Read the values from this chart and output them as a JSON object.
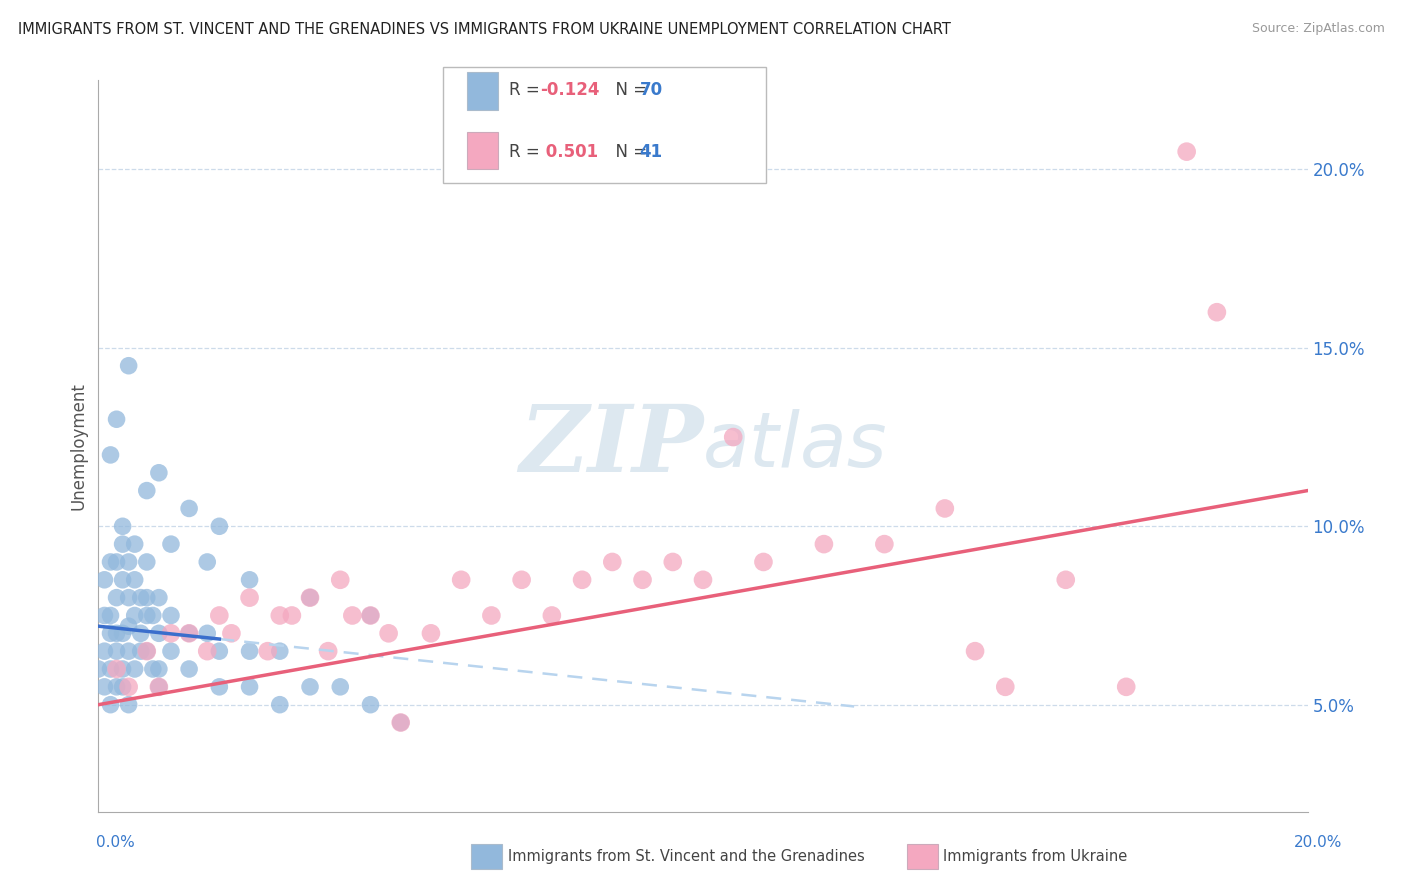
{
  "title": "IMMIGRANTS FROM ST. VINCENT AND THE GRENADINES VS IMMIGRANTS FROM UKRAINE UNEMPLOYMENT CORRELATION CHART",
  "source": "Source: ZipAtlas.com",
  "ylabel": "Unemployment",
  "ytick_values": [
    5.0,
    10.0,
    15.0,
    20.0
  ],
  "ytick_labels": [
    "5.0%",
    "10.0%",
    "15.0%",
    "20.0%"
  ],
  "xlim": [
    0.0,
    20.0
  ],
  "ylim": [
    2.0,
    22.5
  ],
  "legend1_label": "Immigrants from St. Vincent and the Grenadines",
  "legend2_label": "Immigrants from Ukraine",
  "blue_color": "#92b8dc",
  "pink_color": "#f4a8c0",
  "blue_line_color": "#3a6ecc",
  "pink_line_color": "#e8607a",
  "blue_dash_color": "#b8d4ee",
  "R_color": "#e8607a",
  "N_color": "#3a7acc",
  "watermark_color": "#dde8f0",
  "blue_R": "-0.124",
  "blue_N": "70",
  "pink_R": "0.501",
  "pink_N": "41",
  "blue_x": [
    0.0,
    0.1,
    0.1,
    0.1,
    0.1,
    0.2,
    0.2,
    0.2,
    0.2,
    0.2,
    0.3,
    0.3,
    0.3,
    0.3,
    0.3,
    0.4,
    0.4,
    0.4,
    0.4,
    0.4,
    0.5,
    0.5,
    0.5,
    0.5,
    0.5,
    0.6,
    0.6,
    0.6,
    0.7,
    0.7,
    0.7,
    0.8,
    0.8,
    0.8,
    0.9,
    0.9,
    1.0,
    1.0,
    1.0,
    1.0,
    1.2,
    1.2,
    1.5,
    1.5,
    1.8,
    2.0,
    2.0,
    2.5,
    2.5,
    3.0,
    3.0,
    3.5,
    4.0,
    4.5,
    5.0,
    0.5,
    0.3,
    0.8,
    1.0,
    1.5,
    2.0,
    0.2,
    0.4,
    0.6,
    0.8,
    1.2,
    1.8,
    2.5,
    3.5,
    4.5
  ],
  "blue_y": [
    6.0,
    7.5,
    5.5,
    8.5,
    6.5,
    7.0,
    9.0,
    6.0,
    7.5,
    5.0,
    8.0,
    7.0,
    6.5,
    9.0,
    5.5,
    8.5,
    7.0,
    6.0,
    9.5,
    5.5,
    8.0,
    7.2,
    6.5,
    9.0,
    5.0,
    8.5,
    7.5,
    6.0,
    8.0,
    7.0,
    6.5,
    7.5,
    6.5,
    8.0,
    7.5,
    6.0,
    8.0,
    7.0,
    6.0,
    5.5,
    7.5,
    6.5,
    7.0,
    6.0,
    7.0,
    6.5,
    5.5,
    6.5,
    5.5,
    6.5,
    5.0,
    5.5,
    5.5,
    5.0,
    4.5,
    14.5,
    13.0,
    11.0,
    11.5,
    10.5,
    10.0,
    12.0,
    10.0,
    9.5,
    9.0,
    9.5,
    9.0,
    8.5,
    8.0,
    7.5
  ],
  "pink_x": [
    0.3,
    0.5,
    0.8,
    1.0,
    1.2,
    1.5,
    1.8,
    2.0,
    2.2,
    2.5,
    2.8,
    3.0,
    3.2,
    3.5,
    3.8,
    4.0,
    4.2,
    4.5,
    4.8,
    5.0,
    5.5,
    6.0,
    6.5,
    7.0,
    7.5,
    8.0,
    8.5,
    9.0,
    9.5,
    10.0,
    11.0,
    12.0,
    13.0,
    14.0,
    15.0,
    16.0,
    17.0,
    18.0,
    18.5,
    10.5,
    14.5
  ],
  "pink_y": [
    6.0,
    5.5,
    6.5,
    5.5,
    7.0,
    7.0,
    6.5,
    7.5,
    7.0,
    8.0,
    6.5,
    7.5,
    7.5,
    8.0,
    6.5,
    8.5,
    7.5,
    7.5,
    7.0,
    4.5,
    7.0,
    8.5,
    7.5,
    8.5,
    7.5,
    8.5,
    9.0,
    8.5,
    9.0,
    8.5,
    9.0,
    9.5,
    9.5,
    10.5,
    5.5,
    8.5,
    5.5,
    20.5,
    16.0,
    12.5,
    6.5
  ]
}
